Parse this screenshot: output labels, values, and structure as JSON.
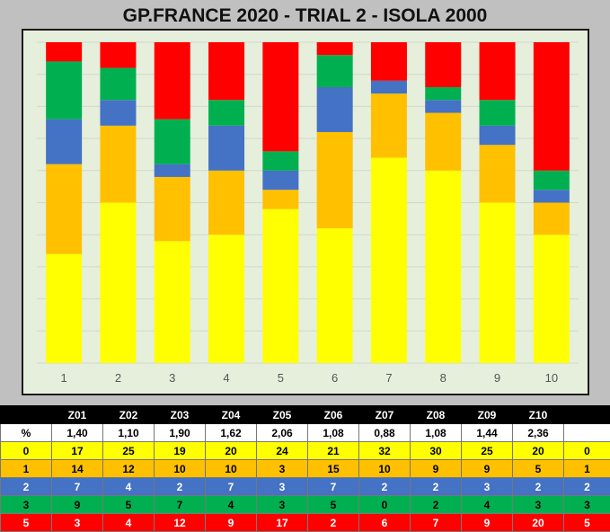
{
  "title": "GP.FRANCE 2020 - TRIAL 2 - ISOLA 2000",
  "colors": {
    "zone_0": "#ffff00",
    "zone_1": "#ffc000",
    "zone_2": "#4472c4",
    "zone_3": "#00b050",
    "zone_5": "#ff0000",
    "plot_bg": "#e6efdc",
    "gridline": "#d0d8c8"
  },
  "chart_data": {
    "type": "bar",
    "stacked": true,
    "normalized_percent": true,
    "categories": [
      "1",
      "2",
      "3",
      "4",
      "5",
      "6",
      "7",
      "8",
      "9",
      "10"
    ],
    "series": [
      {
        "name": "0",
        "color": "#ffff00",
        "values": [
          17,
          25,
          19,
          20,
          24,
          21,
          32,
          30,
          25,
          20
        ]
      },
      {
        "name": "1",
        "color": "#ffc000",
        "values": [
          14,
          12,
          10,
          10,
          3,
          15,
          10,
          9,
          9,
          5
        ]
      },
      {
        "name": "2",
        "color": "#4472c4",
        "values": [
          7,
          4,
          2,
          7,
          3,
          7,
          2,
          2,
          3,
          2
        ]
      },
      {
        "name": "3",
        "color": "#00b050",
        "values": [
          9,
          5,
          7,
          4,
          3,
          5,
          0,
          2,
          4,
          3
        ]
      },
      {
        "name": "5",
        "color": "#ff0000",
        "values": [
          3,
          4,
          12,
          9,
          17,
          2,
          6,
          7,
          9,
          20
        ]
      }
    ],
    "ylim": [
      0,
      100
    ],
    "grid": true,
    "legend": "none"
  },
  "table": {
    "header": [
      "",
      "Z01",
      "Z02",
      "Z03",
      "Z04",
      "Z05",
      "Z06",
      "Z07",
      "Z08",
      "Z09",
      "Z10",
      ""
    ],
    "rows": [
      {
        "cls": "pct",
        "label": "%",
        "cells": [
          "1,40",
          "1,10",
          "1,90",
          "1,62",
          "2,06",
          "1,08",
          "0,88",
          "1,08",
          "1,44",
          "2,36"
        ],
        "end": ""
      },
      {
        "cls": "z0",
        "label": "0",
        "cells": [
          "17",
          "25",
          "19",
          "20",
          "24",
          "21",
          "32",
          "30",
          "25",
          "20"
        ],
        "end": "0"
      },
      {
        "cls": "z1",
        "label": "1",
        "cells": [
          "14",
          "12",
          "10",
          "10",
          "3",
          "15",
          "10",
          "9",
          "9",
          "5"
        ],
        "end": "1"
      },
      {
        "cls": "z2",
        "label": "2",
        "cells": [
          "7",
          "4",
          "2",
          "7",
          "3",
          "7",
          "2",
          "2",
          "3",
          "2"
        ],
        "end": "2"
      },
      {
        "cls": "z3",
        "label": "3",
        "cells": [
          "9",
          "5",
          "7",
          "4",
          "3",
          "5",
          "0",
          "2",
          "4",
          "3"
        ],
        "end": "3"
      },
      {
        "cls": "z5",
        "label": "5",
        "cells": [
          "3",
          "4",
          "12",
          "9",
          "17",
          "2",
          "6",
          "7",
          "9",
          "20"
        ],
        "end": "5"
      }
    ]
  }
}
